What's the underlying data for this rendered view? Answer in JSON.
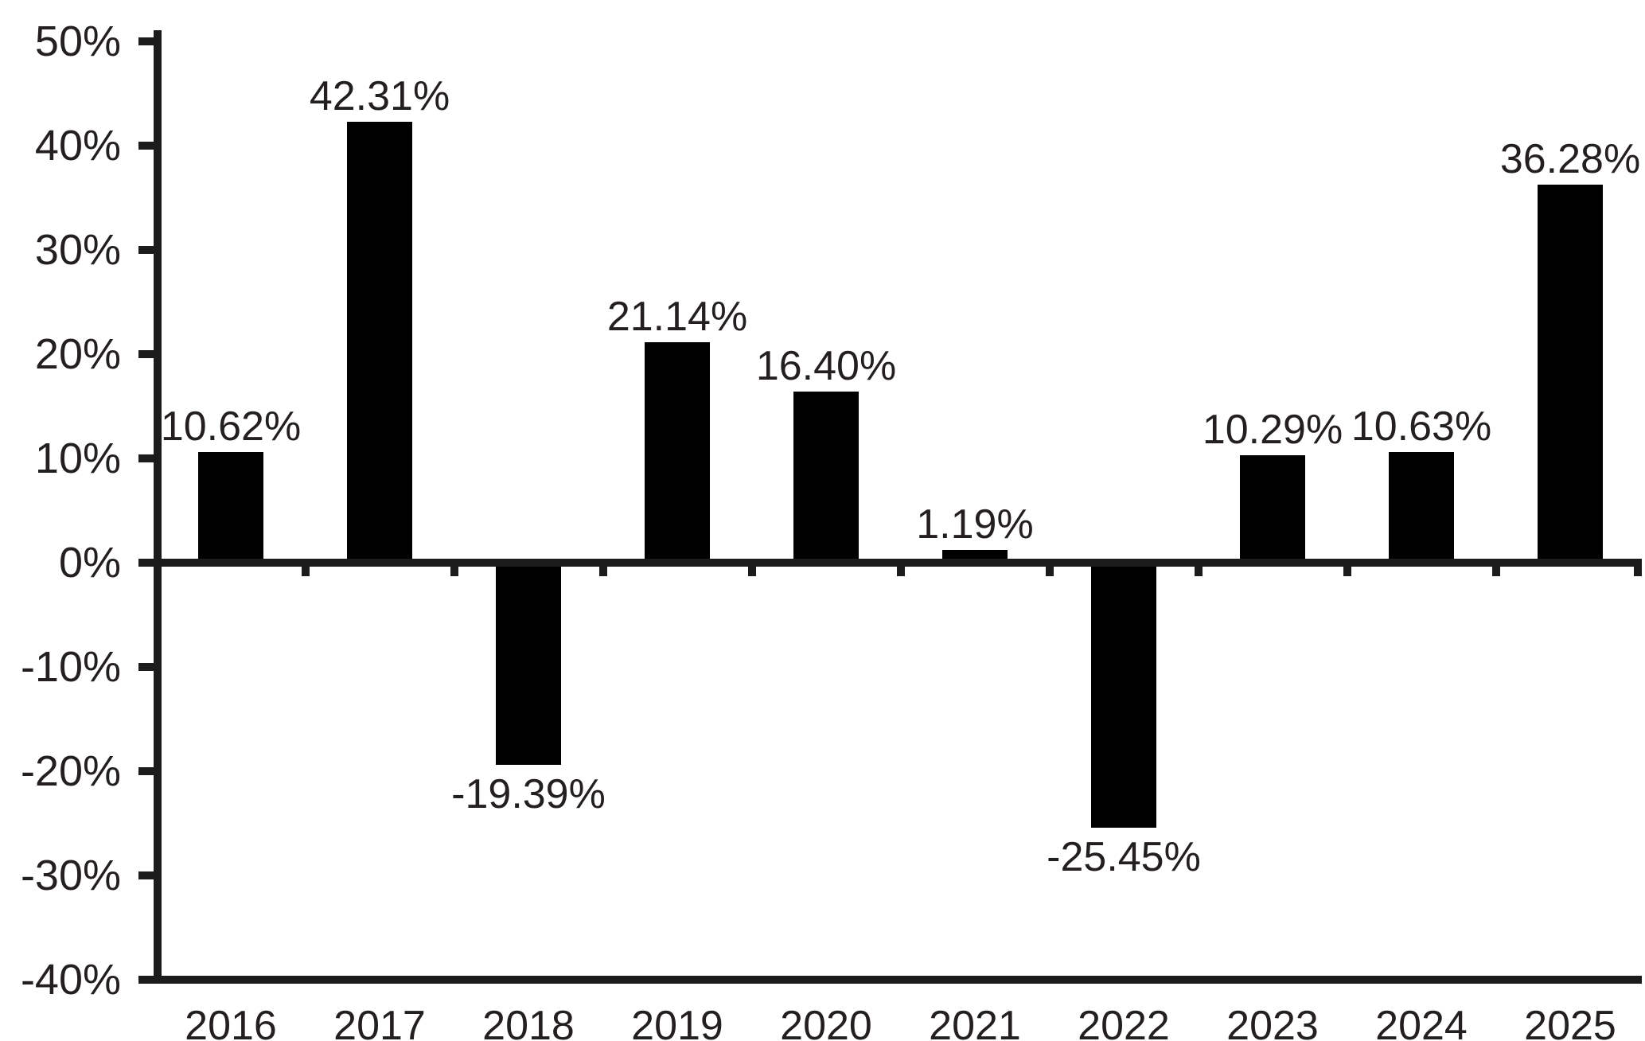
{
  "chart_data": {
    "type": "bar",
    "title": "",
    "xlabel": "",
    "ylabel": "",
    "categories": [
      "2016",
      "2017",
      "2018",
      "2019",
      "2020",
      "2021",
      "2022",
      "2023",
      "2024",
      "2025"
    ],
    "values": [
      10.62,
      42.31,
      -19.39,
      21.14,
      16.4,
      1.19,
      -25.45,
      10.29,
      10.63,
      36.28
    ],
    "value_labels": [
      "10.62%",
      "42.31%",
      "-19.39%",
      "21.14%",
      "16.40%",
      "1.19%",
      "-25.45%",
      "10.29%",
      "10.63%",
      "36.28%"
    ],
    "y_tick_values": [
      50,
      40,
      30,
      20,
      10,
      0,
      -10,
      -20,
      -30,
      -40
    ],
    "y_tick_labels": [
      "50%",
      "40%",
      "30%",
      "20%",
      "10%",
      "0%",
      "-10%",
      "-20%",
      "-30%",
      "-40%"
    ],
    "ylim": [
      -40,
      50
    ],
    "grid": false,
    "legend": "none",
    "bar_color": "#000000",
    "axis_color": "#1c1c1c",
    "text_color": "#231f20",
    "background_color": "#ffffff"
  }
}
